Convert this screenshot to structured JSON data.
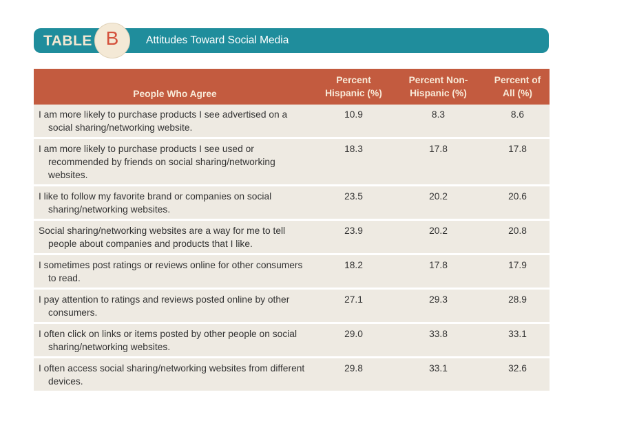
{
  "banner": {
    "tag": "TABLE",
    "letter": "B",
    "title": "Attitudes Toward Social Media"
  },
  "table": {
    "headers": {
      "label": "People Who Agree",
      "hispanic_line1": "Percent",
      "hispanic_line2": "Hispanic (%)",
      "nonhispanic_line1": "Percent Non-",
      "nonhispanic_line2": "Hispanic (%)",
      "all_line1": "Percent of",
      "all_line2": "All (%)"
    },
    "rows": [
      {
        "statement": "I am more likely to purchase products I see advertised on a social sharing/networking website.",
        "hispanic": "10.9",
        "non_hispanic": "8.3",
        "all": "8.6"
      },
      {
        "statement": "I am more likely to purchase products I see used or recommended by friends on social sharing/networking websites.",
        "hispanic": "18.3",
        "non_hispanic": "17.8",
        "all": "17.8"
      },
      {
        "statement": "I like to follow my favorite brand or companies on social sharing/networking websites.",
        "hispanic": "23.5",
        "non_hispanic": "20.2",
        "all": "20.6"
      },
      {
        "statement": "Social sharing/networking websites are a way for me to tell people about companies and products that I like.",
        "hispanic": "23.9",
        "non_hispanic": "20.2",
        "all": "20.8"
      },
      {
        "statement": "I sometimes post ratings or reviews online for other consumers to read.",
        "hispanic": "18.2",
        "non_hispanic": "17.8",
        "all": "17.9"
      },
      {
        "statement": "I pay attention to ratings and reviews posted online by other consumers.",
        "hispanic": "27.1",
        "non_hispanic": "29.3",
        "all": "28.9"
      },
      {
        "statement": "I often click on links or items posted by other people on social sharing/networking websites.",
        "hispanic": "29.0",
        "non_hispanic": "33.8",
        "all": "33.1"
      },
      {
        "statement": "I often access social sharing/networking websites from different devices.",
        "hispanic": "29.8",
        "non_hispanic": "33.1",
        "all": "32.6"
      }
    ]
  },
  "colors": {
    "banner": "#1f8d9c",
    "header": "#c35b3f",
    "row": "#eeeae2",
    "accent_letter": "#d4513c"
  }
}
